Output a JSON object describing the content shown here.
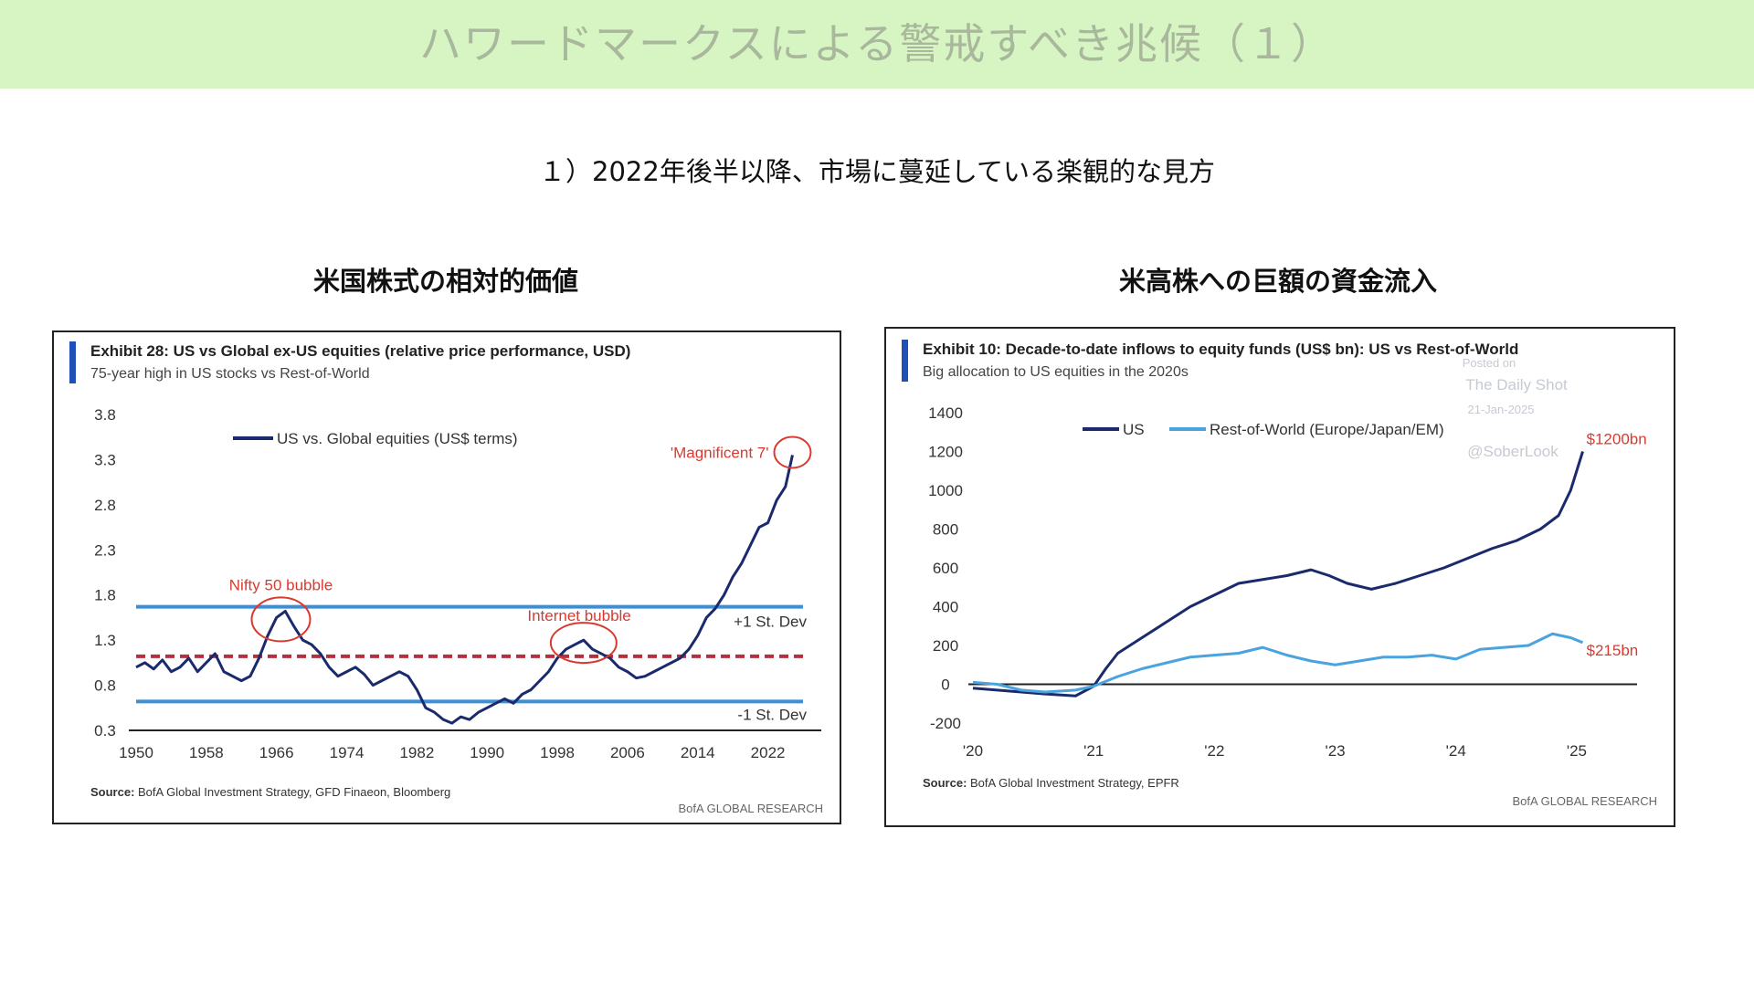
{
  "page": {
    "title": "ハワードマークスによる警戒すべき兆候（１）",
    "subtitle": "１）2022年後半以降、市場に蔓延している楽観的な見方",
    "left_heading": "米国株式の相対的価値",
    "right_heading": "米高株への巨額の資金流入"
  },
  "chart_data": [
    {
      "type": "line",
      "title": "Exhibit 28: US vs Global ex-US equities (relative price performance, USD)",
      "subtitle": "75-year high in US stocks vs Rest-of-World",
      "source": "BofA Global Investment Strategy, GFD Finaeon, Bloomberg",
      "source_prefix": "Source:",
      "brand": "BofA GLOBAL RESEARCH",
      "accent_color": "#1f4fb8",
      "x_ticks": [
        "1950",
        "1958",
        "1966",
        "1974",
        "1982",
        "1990",
        "1998",
        "2006",
        "2014",
        "2022"
      ],
      "y_ticks": [
        "3.8",
        "3.3",
        "2.8",
        "2.3",
        "1.8",
        "1.3",
        "0.8",
        "0.3"
      ],
      "xlim": [
        1950,
        2026
      ],
      "ylim": [
        0.3,
        3.8
      ],
      "reference_lines": [
        {
          "label": "+1 St. Dev",
          "value": 1.67,
          "color": "#3a8fd6",
          "style": "solid"
        },
        {
          "label": "",
          "value": 1.12,
          "color": "#b5303c",
          "style": "dashed"
        },
        {
          "label": "-1 St. Dev",
          "value": 0.62,
          "color": "#3a8fd6",
          "style": "solid"
        }
      ],
      "annotations": [
        {
          "text": "Nifty 50 bubble",
          "x": 1967,
          "y": 1.55,
          "color": "#d93a2f"
        },
        {
          "text": "Internet bubble",
          "x": 2001,
          "y": 1.25,
          "color": "#d93a2f"
        },
        {
          "text": "'Magnificent 7'",
          "x": 2024.5,
          "y": 3.35,
          "color": "#d93a2f"
        }
      ],
      "series": [
        {
          "name": "US vs. Global equities (US$ terms)",
          "color": "#1a2a6c",
          "x": [
            1950,
            1951,
            1952,
            1953,
            1954,
            1955,
            1956,
            1957,
            1958,
            1959,
            1960,
            1961,
            1962,
            1963,
            1964,
            1965,
            1966,
            1967,
            1968,
            1969,
            1970,
            1971,
            1972,
            1973,
            1974,
            1975,
            1976,
            1977,
            1978,
            1979,
            1980,
            1981,
            1982,
            1983,
            1984,
            1985,
            1986,
            1987,
            1988,
            1989,
            1990,
            1991,
            1992,
            1993,
            1994,
            1995,
            1996,
            1997,
            1998,
            1999,
            2000,
            2001,
            2002,
            2003,
            2004,
            2005,
            2006,
            2007,
            2008,
            2009,
            2010,
            2011,
            2012,
            2013,
            2014,
            2015,
            2016,
            2017,
            2018,
            2019,
            2020,
            2021,
            2022,
            2023,
            2024,
            2024.8
          ],
          "values": [
            1.0,
            1.05,
            0.98,
            1.08,
            0.95,
            1.0,
            1.1,
            0.95,
            1.05,
            1.15,
            0.95,
            0.9,
            0.85,
            0.9,
            1.1,
            1.35,
            1.55,
            1.62,
            1.45,
            1.3,
            1.25,
            1.15,
            1.0,
            0.9,
            0.95,
            1.0,
            0.92,
            0.8,
            0.85,
            0.9,
            0.95,
            0.9,
            0.75,
            0.55,
            0.5,
            0.42,
            0.38,
            0.45,
            0.42,
            0.5,
            0.55,
            0.6,
            0.65,
            0.6,
            0.7,
            0.75,
            0.85,
            0.95,
            1.1,
            1.2,
            1.25,
            1.3,
            1.2,
            1.15,
            1.1,
            1.0,
            0.95,
            0.88,
            0.9,
            0.95,
            1.0,
            1.05,
            1.1,
            1.2,
            1.35,
            1.55,
            1.65,
            1.8,
            2.0,
            2.15,
            2.35,
            2.55,
            2.6,
            2.85,
            3.0,
            3.35
          ]
        }
      ]
    },
    {
      "type": "line",
      "title": "Exhibit 10: Decade-to-date inflows to equity funds (US$ bn): US vs Rest-of-World",
      "subtitle": "Big allocation to US equities in the 2020s",
      "source": "BofA Global Investment Strategy, EPFR",
      "source_prefix": "Source:",
      "brand": "BofA GLOBAL RESEARCH",
      "accent_color": "#1f4fb8",
      "watermark": [
        "Posted on",
        "The Daily Shot",
        "21-Jan-2025",
        "@SoberLook"
      ],
      "x_ticks": [
        "'20",
        "'21",
        "'22",
        "'23",
        "'24",
        "'25"
      ],
      "y_ticks": [
        "1400",
        "1200",
        "1000",
        "800",
        "600",
        "400",
        "200",
        "0",
        "-200"
      ],
      "xlim": [
        2020,
        2025.5
      ],
      "ylim": [
        -200,
        1400
      ],
      "end_labels": [
        {
          "text": "$1200bn",
          "series": 0,
          "color": "#d93a2f"
        },
        {
          "text": "$215bn",
          "series": 1,
          "color": "#d93a2f"
        }
      ],
      "series": [
        {
          "name": "US",
          "color": "#1a2a6c",
          "x": [
            2020.0,
            2020.2,
            2020.4,
            2020.6,
            2020.85,
            2021.0,
            2021.1,
            2021.2,
            2021.4,
            2021.6,
            2021.8,
            2022.0,
            2022.2,
            2022.4,
            2022.6,
            2022.8,
            2022.95,
            2023.1,
            2023.3,
            2023.5,
            2023.7,
            2023.9,
            2024.1,
            2024.3,
            2024.5,
            2024.7,
            2024.85,
            2024.95,
            2025.05
          ],
          "values": [
            -20,
            -30,
            -40,
            -50,
            -60,
            -10,
            80,
            160,
            240,
            320,
            400,
            460,
            520,
            540,
            560,
            590,
            560,
            520,
            490,
            520,
            560,
            600,
            650,
            700,
            740,
            800,
            870,
            1000,
            1200
          ]
        },
        {
          "name": "Rest-of-World (Europe/Japan/EM)",
          "color": "#4aa3df",
          "x": [
            2020.0,
            2020.2,
            2020.4,
            2020.6,
            2020.85,
            2021.0,
            2021.2,
            2021.4,
            2021.6,
            2021.8,
            2022.0,
            2022.2,
            2022.4,
            2022.6,
            2022.8,
            2023.0,
            2023.2,
            2023.4,
            2023.6,
            2023.8,
            2024.0,
            2024.2,
            2024.4,
            2024.6,
            2024.8,
            2024.95,
            2025.05
          ],
          "values": [
            10,
            0,
            -30,
            -40,
            -30,
            -10,
            40,
            80,
            110,
            140,
            150,
            160,
            190,
            150,
            120,
            100,
            120,
            140,
            140,
            150,
            130,
            180,
            190,
            200,
            260,
            240,
            215
          ]
        }
      ]
    }
  ]
}
